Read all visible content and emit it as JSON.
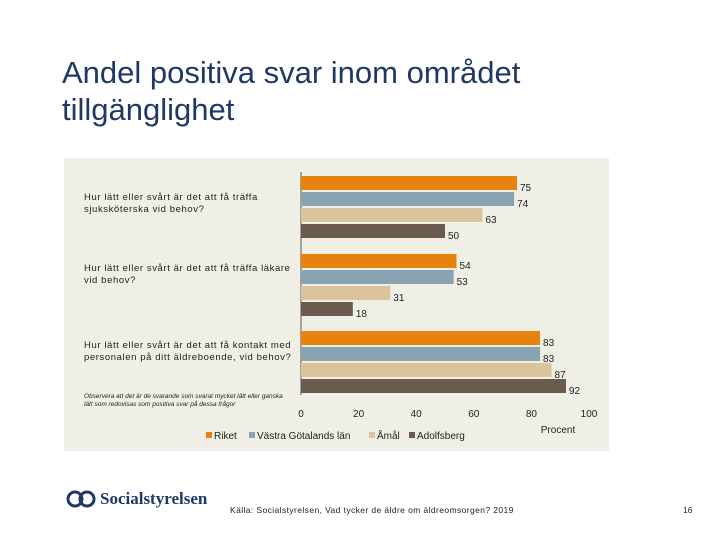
{
  "title": "Andel positiva svar inom området tillgänglighet",
  "questions": [
    "Hur lätt eller svårt är det att få träffa sjuksköterska vid behov?",
    "Hur lätt eller svårt är det att få träffa läkare vid behov?",
    "Hur lätt eller svårt är det att få kontakt med personalen på ditt äldreboende, vid behov?"
  ],
  "note": "Observera att det är de svarande som svarat mycket lätt eller ganska lätt som redovisas som positiva svar på dessa frågor",
  "colors": {
    "Riket": "#e8820e",
    "Västra Götalands län": "#8aa3b1",
    "Åmål": "#d9c49b",
    "Adolfsberg": "#6b5a4e"
  },
  "chart_data": {
    "type": "bar",
    "orientation": "horizontal",
    "categories": [
      "Hur lätt eller svårt är det att få träffa sjuksköterska vid behov?",
      "Hur lätt eller svårt är det att få träffa läkare vid behov?",
      "Hur lätt eller svårt är det att få kontakt med personalen på ditt äldreboende, vid behov?"
    ],
    "series": [
      {
        "name": "Riket",
        "values": [
          75,
          54,
          83
        ]
      },
      {
        "name": "Västra Götalands län",
        "values": [
          74,
          53,
          83
        ]
      },
      {
        "name": "Åmål",
        "values": [
          63,
          31,
          87
        ]
      },
      {
        "name": "Adolfsberg",
        "values": [
          50,
          18,
          92
        ]
      }
    ],
    "xlabel": "Procent",
    "xlim": [
      0,
      100
    ],
    "xticks": [
      "0",
      "20",
      "40",
      "60",
      "80",
      "100"
    ]
  },
  "footer": {
    "logo_text": "Socialstyrelsen",
    "source": "Källa: Socialstyrelsen, Vad tycker de äldre om äldreomsorgen? 2019",
    "page": "16"
  }
}
